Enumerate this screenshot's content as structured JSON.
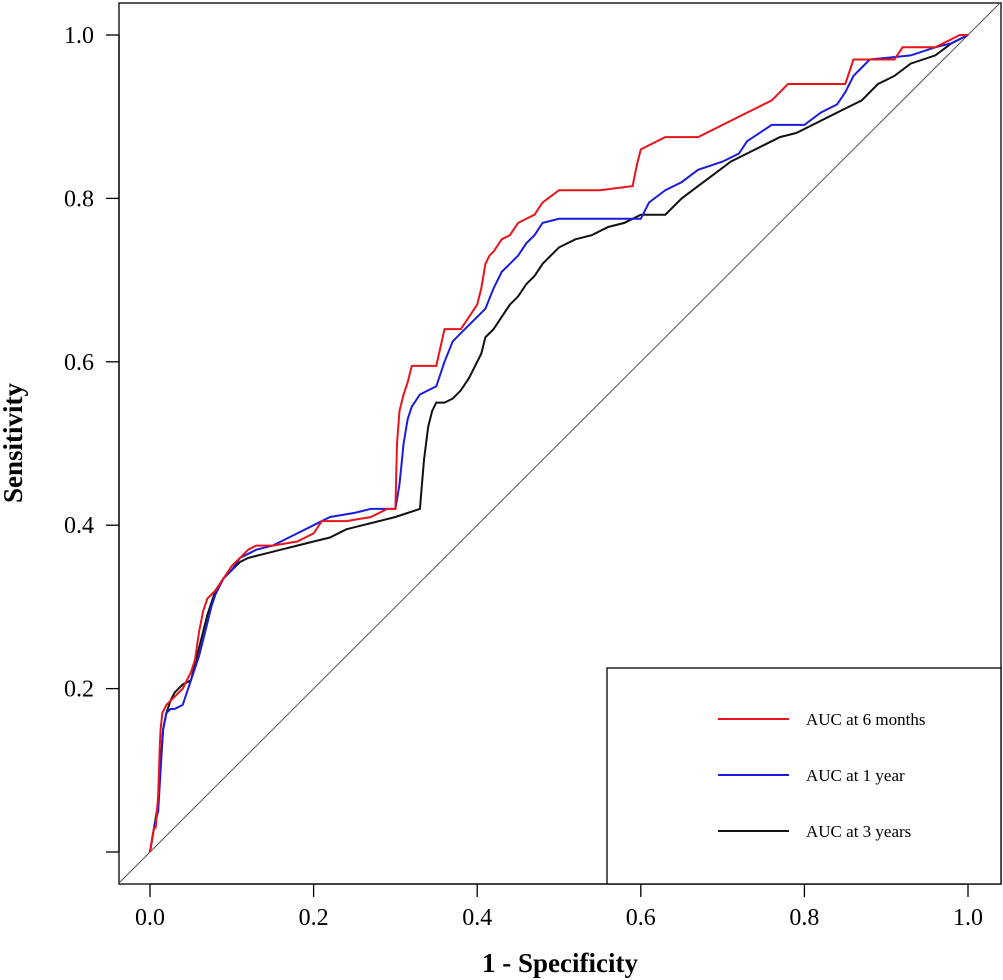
{
  "chart_data": {
    "type": "line",
    "title": "",
    "xlabel": "1 - Specificity",
    "ylabel": "Sensitivity",
    "xlim": [
      -0.04,
      1.04
    ],
    "ylim": [
      -0.04,
      1.04
    ],
    "x_ticks": [
      0.0,
      0.2,
      0.4,
      0.6,
      0.8,
      1.0
    ],
    "x_tick_labels": [
      "0.0",
      "0.2",
      "0.4",
      "0.6",
      "0.8",
      "1.0"
    ],
    "y_ticks": [
      0.0,
      0.2,
      0.4,
      0.6,
      0.8,
      1.0
    ],
    "y_tick_labels": [
      "",
      "0.2",
      "0.4",
      "0.6",
      "0.8",
      "1.0"
    ],
    "grid": false,
    "legend_position": "bottom-right",
    "reference_line": {
      "name": "chance",
      "x": [
        0,
        1
      ],
      "y": [
        0,
        1
      ],
      "color": "#555555"
    },
    "series": [
      {
        "name": "AUC at 6 months",
        "color": "#e8141c",
        "x": [
          0,
          0.005,
          0.007,
          0.01,
          0.012,
          0.013,
          0.015,
          0.02,
          0.025,
          0.03,
          0.04,
          0.05,
          0.055,
          0.06,
          0.065,
          0.07,
          0.075,
          0.08,
          0.09,
          0.1,
          0.11,
          0.12,
          0.13,
          0.15,
          0.18,
          0.2,
          0.21,
          0.24,
          0.27,
          0.29,
          0.3,
          0.302,
          0.305,
          0.31,
          0.315,
          0.32,
          0.35,
          0.36,
          0.38,
          0.39,
          0.4,
          0.405,
          0.41,
          0.415,
          0.42,
          0.43,
          0.44,
          0.45,
          0.47,
          0.48,
          0.5,
          0.55,
          0.59,
          0.595,
          0.6,
          0.63,
          0.67,
          0.7,
          0.73,
          0.76,
          0.78,
          0.85,
          0.86,
          0.91,
          0.92,
          0.96,
          0.97,
          0.98,
          0.99,
          1.0
        ],
        "y": [
          0,
          0.03,
          0.03,
          0.07,
          0.13,
          0.15,
          0.17,
          0.18,
          0.185,
          0.19,
          0.2,
          0.22,
          0.235,
          0.27,
          0.295,
          0.31,
          0.315,
          0.32,
          0.335,
          0.35,
          0.36,
          0.37,
          0.375,
          0.375,
          0.38,
          0.39,
          0.405,
          0.405,
          0.41,
          0.42,
          0.42,
          0.5,
          0.54,
          0.56,
          0.575,
          0.595,
          0.595,
          0.64,
          0.64,
          0.655,
          0.67,
          0.69,
          0.72,
          0.73,
          0.735,
          0.75,
          0.755,
          0.77,
          0.78,
          0.795,
          0.81,
          0.81,
          0.815,
          0.84,
          0.86,
          0.875,
          0.875,
          0.89,
          0.905,
          0.92,
          0.94,
          0.94,
          0.97,
          0.97,
          0.985,
          0.985,
          0.99,
          0.995,
          1.0,
          1.0
        ]
      },
      {
        "name": "AUC at 1 year",
        "color": "#1c1cdc",
        "x": [
          0,
          0.005,
          0.01,
          0.013,
          0.016,
          0.02,
          0.025,
          0.03,
          0.04,
          0.05,
          0.055,
          0.06,
          0.065,
          0.07,
          0.075,
          0.08,
          0.09,
          0.1,
          0.11,
          0.12,
          0.13,
          0.15,
          0.18,
          0.2,
          0.22,
          0.25,
          0.27,
          0.29,
          0.3,
          0.305,
          0.31,
          0.315,
          0.32,
          0.33,
          0.35,
          0.36,
          0.37,
          0.38,
          0.39,
          0.4,
          0.41,
          0.42,
          0.43,
          0.44,
          0.45,
          0.46,
          0.47,
          0.48,
          0.5,
          0.52,
          0.55,
          0.6,
          0.61,
          0.63,
          0.65,
          0.67,
          0.7,
          0.72,
          0.73,
          0.76,
          0.8,
          0.82,
          0.84,
          0.85,
          0.86,
          0.88,
          0.93,
          0.96,
          0.98,
          1.0
        ],
        "y": [
          0,
          0.03,
          0.05,
          0.1,
          0.15,
          0.17,
          0.175,
          0.175,
          0.18,
          0.21,
          0.225,
          0.24,
          0.26,
          0.28,
          0.3,
          0.315,
          0.335,
          0.345,
          0.36,
          0.365,
          0.37,
          0.375,
          0.39,
          0.4,
          0.41,
          0.415,
          0.42,
          0.42,
          0.42,
          0.45,
          0.5,
          0.53,
          0.545,
          0.56,
          0.57,
          0.6,
          0.625,
          0.635,
          0.645,
          0.655,
          0.665,
          0.69,
          0.71,
          0.72,
          0.73,
          0.745,
          0.755,
          0.77,
          0.775,
          0.775,
          0.775,
          0.775,
          0.795,
          0.81,
          0.82,
          0.835,
          0.845,
          0.855,
          0.87,
          0.89,
          0.89,
          0.905,
          0.915,
          0.93,
          0.95,
          0.97,
          0.975,
          0.985,
          0.99,
          1.0
        ]
      },
      {
        "name": "AUC at 3 years",
        "color": "#111111",
        "x": [
          0,
          0.005,
          0.01,
          0.013,
          0.016,
          0.02,
          0.025,
          0.03,
          0.035,
          0.04,
          0.05,
          0.055,
          0.06,
          0.065,
          0.07,
          0.08,
          0.09,
          0.1,
          0.11,
          0.12,
          0.14,
          0.16,
          0.18,
          0.2,
          0.22,
          0.24,
          0.26,
          0.28,
          0.3,
          0.33,
          0.335,
          0.34,
          0.345,
          0.35,
          0.36,
          0.37,
          0.38,
          0.39,
          0.4,
          0.405,
          0.41,
          0.42,
          0.43,
          0.44,
          0.45,
          0.46,
          0.47,
          0.48,
          0.5,
          0.52,
          0.54,
          0.56,
          0.58,
          0.6,
          0.63,
          0.65,
          0.67,
          0.69,
          0.71,
          0.73,
          0.75,
          0.77,
          0.79,
          0.81,
          0.83,
          0.85,
          0.87,
          0.89,
          0.91,
          0.93,
          0.96,
          0.98,
          1.0
        ],
        "y": [
          0,
          0.03,
          0.06,
          0.11,
          0.15,
          0.17,
          0.185,
          0.195,
          0.2,
          0.205,
          0.21,
          0.23,
          0.25,
          0.27,
          0.29,
          0.32,
          0.335,
          0.345,
          0.355,
          0.36,
          0.365,
          0.37,
          0.375,
          0.38,
          0.385,
          0.395,
          0.4,
          0.405,
          0.41,
          0.42,
          0.48,
          0.52,
          0.54,
          0.55,
          0.55,
          0.555,
          0.565,
          0.58,
          0.6,
          0.61,
          0.63,
          0.64,
          0.655,
          0.67,
          0.68,
          0.695,
          0.705,
          0.72,
          0.74,
          0.75,
          0.755,
          0.765,
          0.77,
          0.78,
          0.78,
          0.8,
          0.815,
          0.83,
          0.845,
          0.855,
          0.865,
          0.875,
          0.88,
          0.89,
          0.9,
          0.91,
          0.92,
          0.94,
          0.95,
          0.965,
          0.975,
          0.99,
          1.0
        ]
      }
    ]
  }
}
